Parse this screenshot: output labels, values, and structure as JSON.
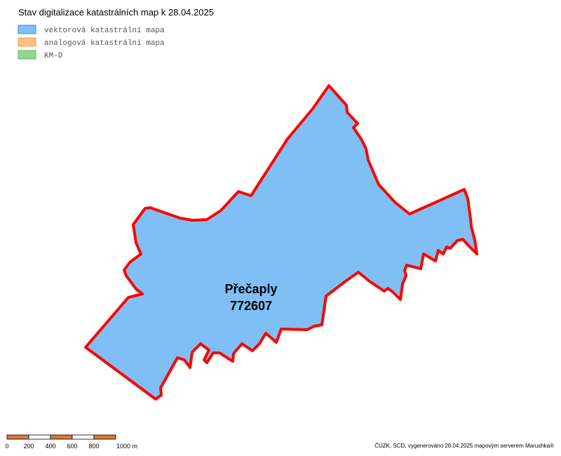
{
  "title": "Stav digitalizace katastrálních map k 28.04.2025",
  "legend": [
    {
      "label": "vektorová katastrální mapa",
      "color": "#7fbff5",
      "border": "#3b8ee0"
    },
    {
      "label": "analogová katastrální mapa",
      "color": "#ffc080",
      "border": "#f0a050"
    },
    {
      "label": "KM-D",
      "color": "#90d890",
      "border": "#5cb85c"
    }
  ],
  "area": {
    "name": "Přečaply",
    "code": "772607",
    "fill": "#7fbff5",
    "outline": "#ff0000"
  },
  "scale_bar": {
    "labels": [
      "0",
      "200",
      "400",
      "600",
      "800",
      "1000 m"
    ],
    "colors": [
      "#d97a3a",
      "#ffffff"
    ]
  },
  "credit": "ČUZK, SCD, vygenerováno 28.04.2025 mapovým serverem Marushka®"
}
